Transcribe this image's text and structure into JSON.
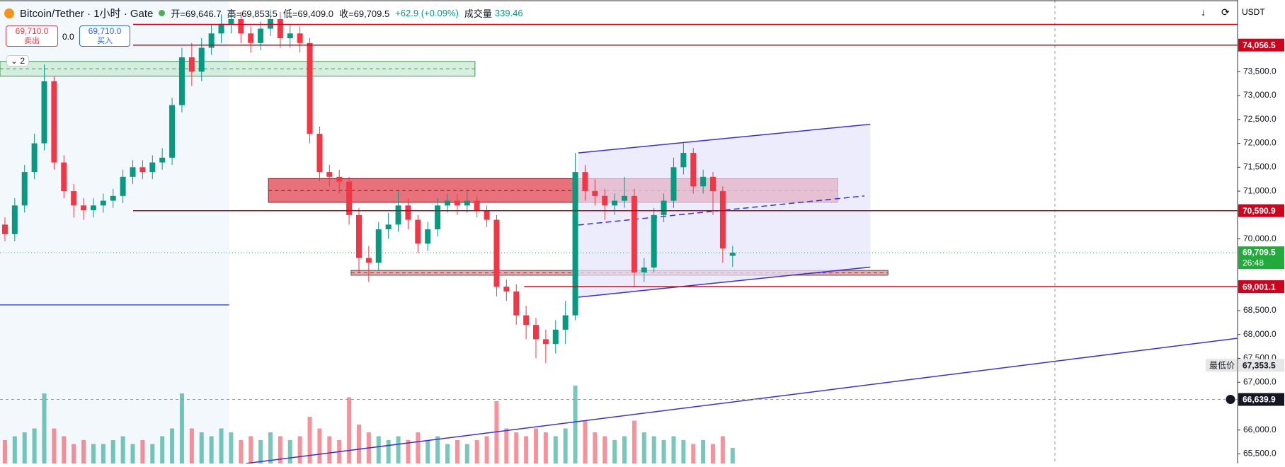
{
  "ui": {
    "symbol": "Bitcoin/Tether · 1小时 · Gate",
    "ohlc": [
      "开=69,646.7",
      "高=69,853.5",
      "低=69,409.0",
      "收=69,709.5"
    ],
    "change": "+62.9 (+0.09%)",
    "volume_label": "成交量",
    "volume_value": "339.46",
    "sell_price": "69,710.0",
    "sell": "卖出",
    "spread": "0.0",
    "buy_price": "69,710.0",
    "buy": "买入",
    "indicators": "2",
    "currency": "USDT"
  },
  "chart_data": {
    "type": "candlestick",
    "up_color": "#089981",
    "down_color": "#f23645",
    "open": [
      70300,
      70100,
      70700,
      71400,
      72000,
      73300,
      71600,
      71000,
      70700,
      70600,
      70700,
      70800,
      70900,
      71300,
      71500,
      71400,
      71600,
      71700,
      72800,
      73800,
      73500,
      74000,
      74300,
      74500,
      74600,
      74300,
      74100,
      74400,
      74600,
      74200,
      74300,
      74100,
      72200,
      71400,
      71300,
      71200,
      70500,
      69600,
      69500,
      70200,
      70300,
      70700,
      70400,
      69900,
      70200,
      70700,
      70800,
      70700,
      70800,
      70600,
      70400,
      69000,
      68900,
      68400,
      68200,
      67900,
      67800,
      68100,
      68400,
      71400,
      71000,
      70900,
      70700,
      70800,
      70900,
      69300,
      69400,
      70500,
      70800,
      71500,
      71800,
      71100,
      71300,
      71000,
      69646.7
    ],
    "high": [
      70450,
      70850,
      71550,
      72200,
      73650,
      73400,
      71750,
      71150,
      70850,
      70850,
      70950,
      71050,
      71450,
      71650,
      71650,
      71750,
      71900,
      72950,
      74000,
      74100,
      74200,
      74500,
      74700,
      74800,
      74750,
      74450,
      74550,
      74800,
      74750,
      74500,
      74450,
      74200,
      72350,
      71550,
      71450,
      71300,
      70650,
      69850,
      70350,
      70550,
      71000,
      70850,
      70500,
      70350,
      70850,
      70950,
      70950,
      71000,
      70900,
      70700,
      70500,
      69150,
      69050,
      68600,
      68350,
      68100,
      68300,
      68700,
      71800,
      71550,
      71250,
      71050,
      70950,
      71300,
      71050,
      69600,
      70650,
      70950,
      71700,
      72000,
      71900,
      71450,
      71400,
      71100,
      69853.5
    ],
    "low": [
      69950,
      69950,
      70550,
      71250,
      71850,
      71450,
      70850,
      70450,
      70400,
      70450,
      70550,
      70650,
      70750,
      71150,
      71250,
      71250,
      71450,
      71550,
      72650,
      73200,
      73300,
      73850,
      74100,
      74300,
      74100,
      73900,
      73950,
      74250,
      74000,
      74000,
      73900,
      72000,
      71200,
      71100,
      70950,
      70300,
      69300,
      69100,
      69350,
      70000,
      70150,
      70200,
      69700,
      69750,
      70050,
      70550,
      70500,
      70550,
      70450,
      70250,
      68800,
      68700,
      68200,
      67900,
      67500,
      67400,
      67600,
      67800,
      68300,
      70800,
      70700,
      70400,
      70500,
      70650,
      69000,
      69100,
      69300,
      70350,
      70650,
      71350,
      70950,
      70950,
      70500,
      69500,
      69409.0
    ],
    "close": [
      70100,
      70700,
      71400,
      72000,
      73300,
      71600,
      71000,
      70700,
      70600,
      70700,
      70800,
      70900,
      71300,
      71500,
      71400,
      71600,
      71700,
      72800,
      73800,
      73500,
      74000,
      74300,
      74500,
      74600,
      74300,
      74100,
      74400,
      74600,
      74200,
      74300,
      74100,
      72200,
      71400,
      71300,
      71200,
      70500,
      69600,
      69500,
      70200,
      70300,
      70700,
      70400,
      69900,
      70200,
      70700,
      70800,
      70700,
      70800,
      70600,
      70400,
      69000,
      68900,
      68400,
      68200,
      67900,
      67800,
      68100,
      68400,
      71400,
      71000,
      70900,
      70700,
      70800,
      70900,
      69300,
      69400,
      70500,
      70800,
      71500,
      71800,
      71100,
      71300,
      71000,
      69800,
      69709.5
    ],
    "volume": [
      600,
      700,
      800,
      900,
      1800,
      900,
      700,
      500,
      600,
      500,
      500,
      600,
      700,
      500,
      600,
      500,
      700,
      900,
      1800,
      900,
      800,
      700,
      900,
      800,
      600,
      700,
      600,
      800,
      700,
      600,
      700,
      1200,
      900,
      700,
      600,
      1700,
      1000,
      800,
      700,
      600,
      700,
      600,
      800,
      600,
      700,
      500,
      600,
      500,
      600,
      700,
      1600,
      900,
      800,
      700,
      900,
      800,
      700,
      900,
      2000,
      1100,
      800,
      700,
      600,
      700,
      1100,
      800,
      700,
      600,
      700,
      600,
      500,
      600,
      500,
      700,
      400
    ],
    "ylim": [
      65300,
      75000
    ],
    "yticks": [
      {
        "value": 65500,
        "label": "65,500.0"
      },
      {
        "value": 66000,
        "label": "66,000.0"
      },
      {
        "value": 67000,
        "label": "67,000.0"
      },
      {
        "value": 67500,
        "label": "67,500.0"
      },
      {
        "value": 68000,
        "label": "68,000.0"
      },
      {
        "value": 68500,
        "label": "68,500.0"
      },
      {
        "value": 70000,
        "label": "70,000.0"
      },
      {
        "value": 71000,
        "label": "71,000.0"
      },
      {
        "value": 71500,
        "label": "71,500.0"
      },
      {
        "value": 72000,
        "label": "72,000.0"
      },
      {
        "value": 72500,
        "label": "72,500.0"
      },
      {
        "value": 73000,
        "label": "73,000.0"
      },
      {
        "value": 73500,
        "label": "73,500.0"
      }
    ],
    "price_lines": [
      {
        "value": 74490,
        "color": "#d0021b"
      },
      {
        "value": 74056.5,
        "label": "74,056.5",
        "color": "#d0021b"
      },
      {
        "value": 70590.9,
        "label": "70,590.9",
        "color": "#d0021b"
      },
      {
        "value": 69001.1,
        "label": "69,001.1",
        "color": "#d0021b",
        "from": 52.8
      }
    ],
    "last_price": {
      "value": 69709.5,
      "label": "69,709.5",
      "countdown": "26:48",
      "color": "#22ab3c"
    },
    "low_marker": {
      "value": 67353.5,
      "label": "67,353.5",
      "caption": "最低价"
    },
    "crosshair": {
      "value": 66639.9,
      "label": "66,639.9"
    },
    "zones": [
      {
        "x": [
          26.8,
          84.7
        ],
        "y": [
          70765,
          71262
        ],
        "fill": "#e0424f",
        "stroke": "#8a1c24"
      },
      {
        "x": [
          -0.5,
          47.8
        ],
        "y": [
          73406,
          73715
        ],
        "fill": "#c8ead3",
        "stroke": "#3a9a4a"
      },
      {
        "x": [
          35.2,
          89.8
        ],
        "y": [
          69240,
          69340
        ],
        "fill": "#e88a8f",
        "stroke": "#555555"
      }
    ],
    "channel": {
      "x": [
        58.3,
        88
      ],
      "upper": [
        71800,
        72400
      ],
      "lower": [
        68780,
        69410
      ],
      "fill": "#e6e4fb",
      "color": "#3b2fd0"
    },
    "lines": [
      {
        "x": [
          24.5,
          125.3
        ],
        "y": [
          65300,
          67920
        ],
        "color": "#3b2fd0",
        "dash": false
      },
      {
        "x": [
          58.3,
          87.4
        ],
        "y": [
          70290,
          70900
        ],
        "color": "#3b2fd0",
        "dash": true
      },
      {
        "x": [
          -0.5,
          22.8
        ],
        "y": [
          68620,
          68620
        ],
        "color": "#3f58d6",
        "dash": false
      }
    ]
  }
}
